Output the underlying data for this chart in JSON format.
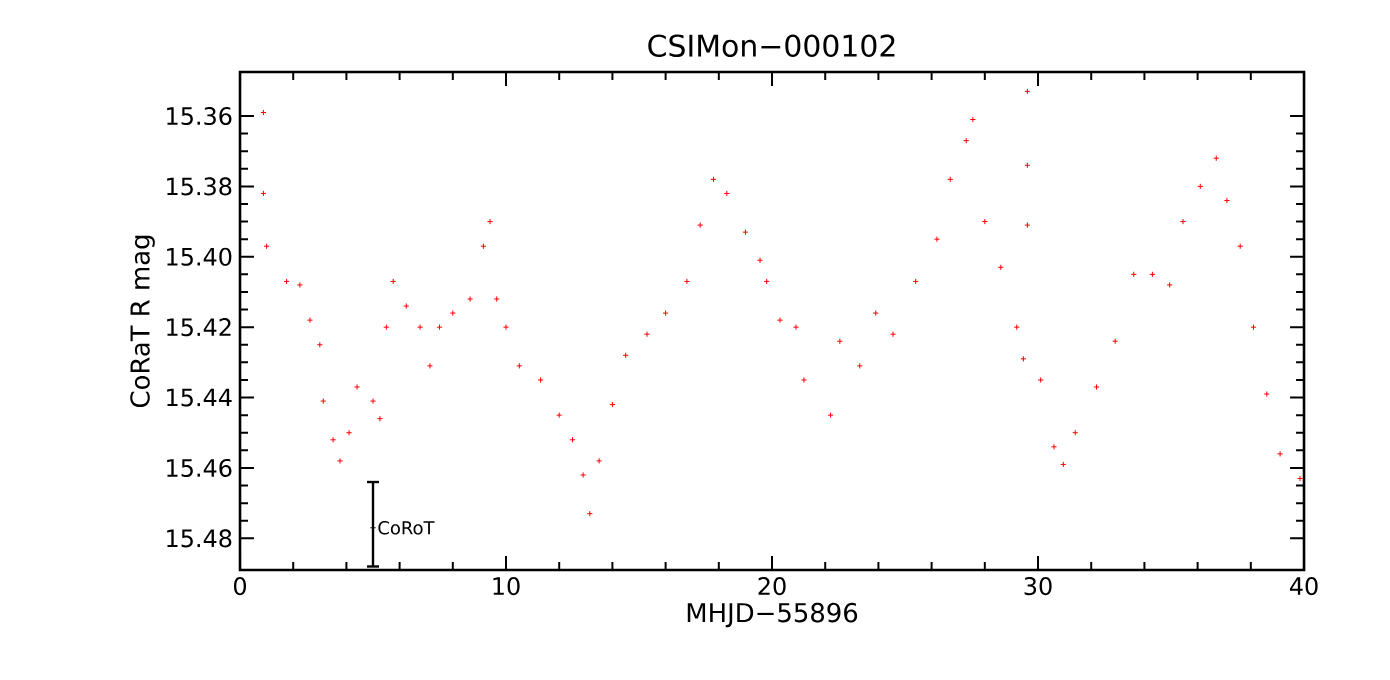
{
  "chart_data": {
    "type": "scatter",
    "title": "CSIMon−000102",
    "xlabel": "MHJD−55896",
    "ylabel": "CoRaT R mag",
    "xlim": [
      0,
      40
    ],
    "ylim": [
      15.489,
      15.3475
    ],
    "xticks": [
      0,
      10,
      20,
      30,
      40
    ],
    "yticks": [
      15.36,
      15.38,
      {
        "value": 15.4,
        "label": "15.40"
      },
      15.42,
      15.44,
      15.46,
      15.48
    ],
    "marker": "cross",
    "grid": false,
    "series": [
      {
        "color": "#ff0000",
        "x": [
          0.88,
          0.88,
          1.0,
          1.75,
          2.25,
          2.63,
          3.0,
          3.13,
          3.5,
          3.76,
          4.1,
          4.4,
          5.0,
          5.26,
          5.5,
          5.76,
          6.25,
          6.77,
          7.14,
          7.5,
          8.0,
          8.65,
          9.15,
          9.4,
          9.65,
          10.0,
          10.5,
          11.3,
          12.0,
          12.5,
          12.9,
          13.15,
          13.5,
          14.0,
          14.5,
          15.3,
          16.0,
          16.8,
          17.3,
          17.8,
          18.3,
          19.0,
          19.55,
          19.8,
          20.3,
          20.9,
          21.2,
          22.2,
          22.55,
          23.3,
          23.9,
          24.55,
          25.4,
          26.2,
          26.7,
          27.3,
          27.55,
          28.0,
          28.6,
          29.2,
          29.45,
          29.6,
          29.6,
          29.6,
          30.1,
          30.6,
          30.95,
          31.4,
          32.2,
          32.9,
          33.6,
          34.3,
          34.95,
          35.45,
          36.1,
          36.7,
          37.1,
          37.6,
          38.1,
          38.6,
          39.1,
          39.85
        ],
        "values": [
          15.359,
          15.382,
          15.397,
          15.407,
          15.408,
          15.418,
          15.425,
          15.441,
          15.452,
          15.458,
          15.45,
          15.437,
          15.441,
          15.446,
          15.42,
          15.407,
          15.414,
          15.42,
          15.431,
          15.42,
          15.416,
          15.412,
          15.397,
          15.39,
          15.412,
          15.42,
          15.431,
          15.435,
          15.445,
          15.452,
          15.462,
          15.473,
          15.458,
          15.442,
          15.428,
          15.422,
          15.416,
          15.407,
          15.391,
          15.378,
          15.382,
          15.393,
          15.401,
          15.407,
          15.418,
          15.42,
          15.435,
          15.445,
          15.424,
          15.431,
          15.416,
          15.422,
          15.407,
          15.395,
          15.378,
          15.367,
          15.361,
          15.39,
          15.403,
          15.42,
          15.429,
          15.353,
          15.374,
          15.391,
          15.435,
          15.454,
          15.459,
          15.45,
          15.437,
          15.424,
          15.405,
          15.405,
          15.408,
          15.39,
          15.38,
          15.372,
          15.384,
          15.397,
          15.42,
          15.439,
          15.456,
          15.463
        ]
      },
      {
        "name": "CoRoT",
        "color": "#000000",
        "x": [
          5
        ],
        "values": [
          15.477
        ],
        "errors": [
          [
            15.464,
            15.488
          ]
        ]
      }
    ]
  }
}
